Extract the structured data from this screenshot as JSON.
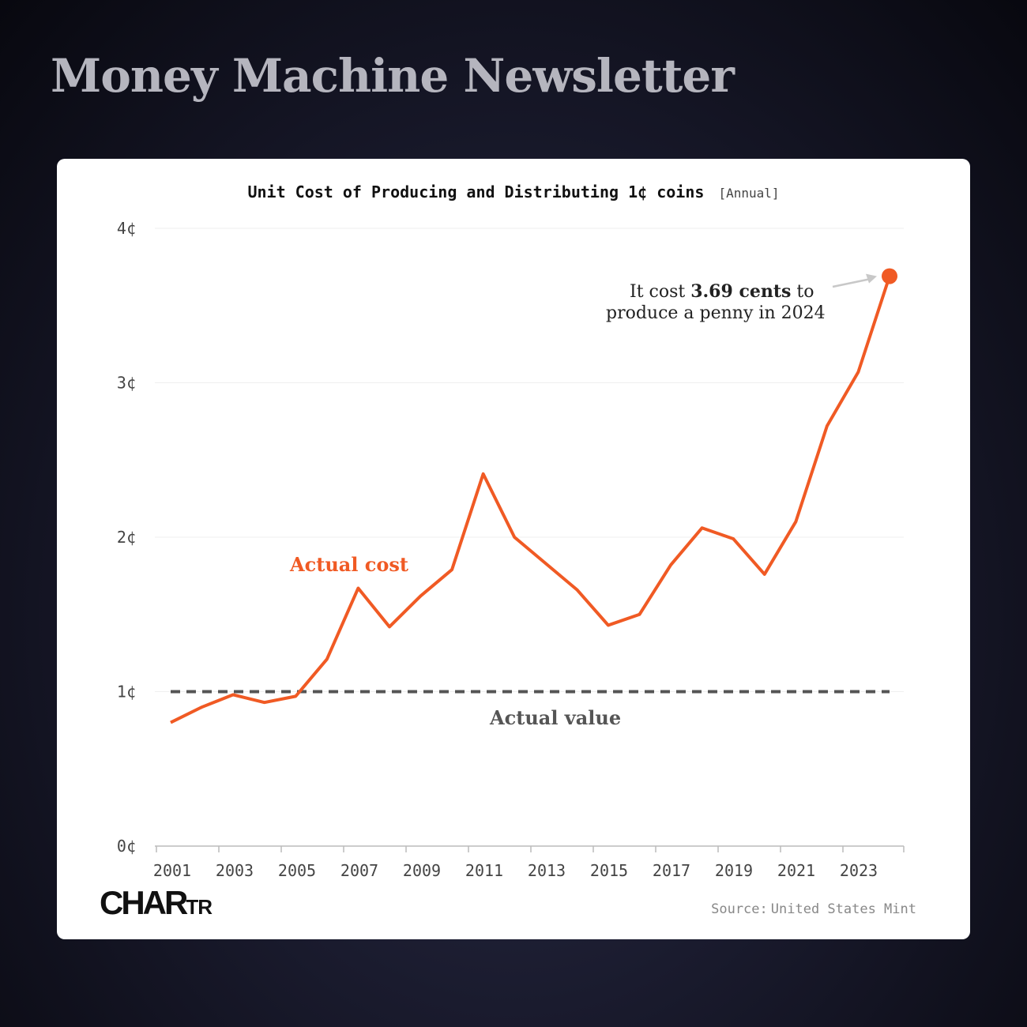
{
  "newsletter": {
    "title": "Money Machine Newsletter"
  },
  "chart_data": {
    "type": "line",
    "title": "Unit Cost of Producing and Distributing 1¢ coins",
    "title_qualifier": "[Annual]",
    "xlabel": "",
    "ylabel": "",
    "xlim": [
      2001,
      2024
    ],
    "ylim": [
      0,
      4
    ],
    "y_ticks": [
      "0¢",
      "1¢",
      "2¢",
      "3¢",
      "4¢"
    ],
    "x_ticks": [
      "2001",
      "2003",
      "2005",
      "2007",
      "2009",
      "2011",
      "2013",
      "2015",
      "2017",
      "2019",
      "2021",
      "2023"
    ],
    "grid": "horizontal",
    "series": [
      {
        "name": "Actual cost",
        "color": "#f05a24",
        "x": [
          2001,
          2002,
          2003,
          2004,
          2005,
          2006,
          2007,
          2008,
          2009,
          2010,
          2011,
          2012,
          2013,
          2014,
          2015,
          2016,
          2017,
          2018,
          2019,
          2020,
          2021,
          2022,
          2023,
          2024
        ],
        "values": [
          0.8,
          0.9,
          0.98,
          0.93,
          0.97,
          1.21,
          1.67,
          1.42,
          1.62,
          1.79,
          2.41,
          2.0,
          1.83,
          1.66,
          1.43,
          1.5,
          1.82,
          2.06,
          1.99,
          1.76,
          2.1,
          2.72,
          3.07,
          3.69
        ]
      },
      {
        "name": "Actual value",
        "color": "#555555",
        "style": "dashed",
        "x": [
          2001,
          2024
        ],
        "values": [
          1,
          1
        ]
      }
    ],
    "annotation": {
      "prefix": "It cost ",
      "highlight": "3.69 cents",
      "suffix": " to",
      "line2": "produce a penny in 2024",
      "point": {
        "x": 2024,
        "y": 3.69
      }
    },
    "source_label": "Source:",
    "source_value": "United States Mint"
  },
  "branding": {
    "logo_main": "CHAR",
    "logo_small": "TR"
  }
}
